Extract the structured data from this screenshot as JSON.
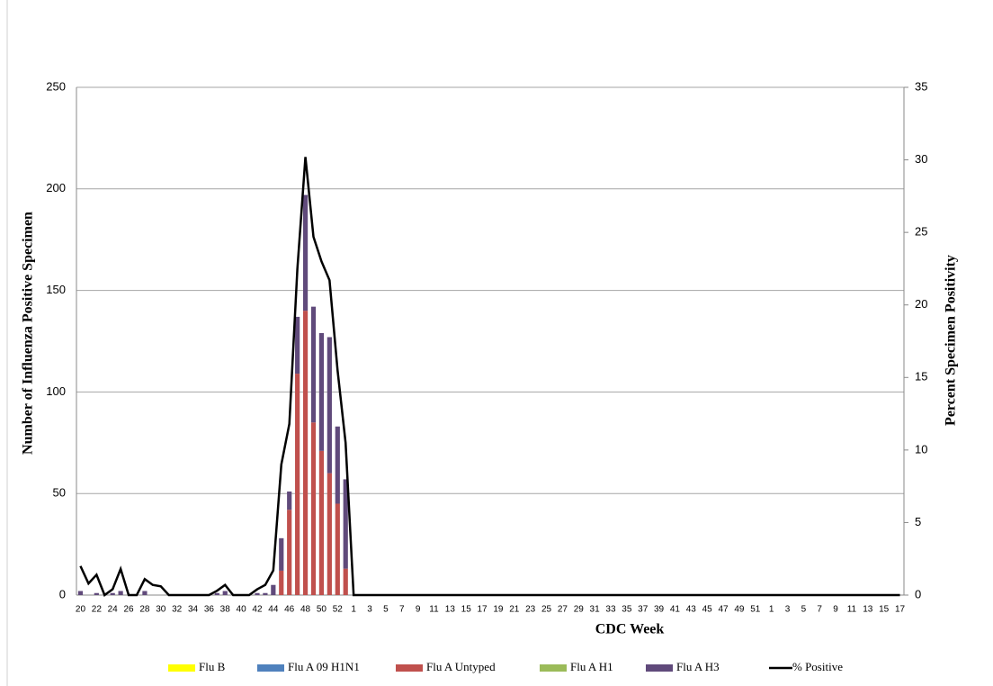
{
  "chart_data": {
    "type": "bar",
    "stacked": true,
    "x_label": "CDC Week",
    "y_label": "Number of Influenza Positive Specimen",
    "y2_label": "Percent Specimen Positivity",
    "grid": true,
    "legend": "bottom",
    "categories": [
      "20",
      null,
      "22",
      null,
      "24",
      null,
      "26",
      null,
      "28",
      null,
      "30",
      null,
      "32",
      null,
      "34",
      null,
      "36",
      null,
      "38",
      null,
      "40",
      null,
      "42",
      null,
      "44",
      null,
      "46",
      null,
      "48",
      null,
      "50",
      null,
      "52",
      null,
      "1",
      null,
      "3",
      null,
      "5",
      null,
      "7",
      null,
      "9",
      null,
      "11",
      null,
      "13",
      null,
      "15",
      null,
      "17",
      null,
      "19",
      null,
      "21",
      null,
      "23",
      null,
      "25",
      null,
      "27",
      null,
      "29",
      null,
      "31",
      null,
      "33",
      null,
      "35",
      null,
      "37",
      null,
      "39",
      null,
      "41",
      null,
      "43",
      null,
      "45",
      null,
      "47",
      null,
      "49",
      null,
      "51",
      null,
      "1",
      null,
      "3",
      null,
      "5",
      null,
      "7",
      null,
      "9",
      null,
      "11",
      null,
      "13",
      null,
      "15",
      null,
      "17"
    ],
    "ylim": [
      0,
      250
    ],
    "yticks": [
      0,
      50,
      100,
      150,
      200,
      250
    ],
    "y2lim": [
      0,
      35
    ],
    "y2ticks": [
      0,
      5,
      10,
      15,
      20,
      25,
      30,
      35
    ],
    "series": [
      {
        "name": "Flu B",
        "color": "#ffff00",
        "type": "bar",
        "values": [
          0,
          0,
          0,
          0,
          0,
          0,
          0,
          0,
          0,
          0,
          0,
          0,
          0,
          0,
          0,
          0,
          0,
          0,
          0,
          0,
          0,
          0,
          0,
          0,
          0,
          0,
          0,
          0,
          0,
          0,
          0,
          0,
          0,
          0,
          0,
          0,
          0,
          0,
          0,
          0,
          0,
          0,
          0,
          0,
          0,
          0,
          0,
          0,
          0,
          0,
          0,
          0,
          0,
          0,
          0,
          0,
          0,
          0,
          0,
          0,
          0,
          0,
          0,
          0,
          0,
          0,
          0,
          0,
          0,
          0,
          0,
          0,
          0,
          0,
          0,
          0,
          0,
          0,
          0,
          0,
          0,
          0,
          0,
          0,
          0,
          0,
          0,
          0,
          0,
          0,
          0,
          0,
          0,
          0,
          0,
          0,
          0,
          0,
          0,
          0,
          0,
          0,
          0
        ]
      },
      {
        "name": "Flu A 09 H1N1",
        "color": "#4f81bd",
        "type": "bar",
        "values": [
          0,
          0,
          0,
          0,
          0,
          0,
          0,
          0,
          0,
          0,
          0,
          0,
          0,
          0,
          0,
          0,
          0,
          0,
          0,
          0,
          0,
          0,
          0,
          0,
          0,
          0,
          0,
          0,
          0,
          0,
          0,
          0,
          0,
          0,
          0,
          0,
          0,
          0,
          0,
          0,
          0,
          0,
          0,
          0,
          0,
          0,
          0,
          0,
          0,
          0,
          0,
          0,
          0,
          0,
          0,
          0,
          0,
          0,
          0,
          0,
          0,
          0,
          0,
          0,
          0,
          0,
          0,
          0,
          0,
          0,
          0,
          0,
          0,
          0,
          0,
          0,
          0,
          0,
          0,
          0,
          0,
          0,
          0,
          0,
          0,
          0,
          0,
          0,
          0,
          0,
          0,
          0,
          0,
          0,
          0,
          0,
          0,
          0,
          0,
          0,
          0,
          0,
          0
        ]
      },
      {
        "name": "Flu A Untyped",
        "color": "#c0504d",
        "type": "bar",
        "values": [
          0,
          0,
          0,
          0,
          0,
          0,
          0,
          0,
          0,
          0,
          0,
          0,
          0,
          0,
          0,
          0,
          0,
          0,
          0,
          0,
          0,
          0,
          0,
          0,
          0,
          12,
          42,
          109,
          140,
          85,
          71,
          60,
          45,
          13,
          0,
          0,
          0,
          0,
          0,
          0,
          0,
          0,
          0,
          0,
          0,
          0,
          0,
          0,
          0,
          0,
          0,
          0,
          0,
          0,
          0,
          0,
          0,
          0,
          0,
          0,
          0,
          0,
          0,
          0,
          0,
          0,
          0,
          0,
          0,
          0,
          0,
          0,
          0,
          0,
          0,
          0,
          0,
          0,
          0,
          0,
          0,
          0,
          0,
          0,
          0,
          0,
          0,
          0,
          0,
          0,
          0,
          0,
          0,
          0,
          0,
          0,
          0,
          0,
          0,
          0,
          0,
          0,
          0
        ]
      },
      {
        "name": "Flu A H1",
        "color": "#9bbb59",
        "type": "bar",
        "values": [
          0,
          0,
          0,
          0,
          0,
          0,
          0,
          0,
          0,
          0,
          0,
          0,
          0,
          0,
          0,
          0,
          0,
          0,
          0,
          0,
          0,
          0,
          0,
          0,
          0,
          0,
          0,
          0,
          0,
          0,
          0,
          0,
          0,
          0,
          0,
          0,
          0,
          0,
          0,
          0,
          0,
          0,
          0,
          0,
          0,
          0,
          0,
          0,
          0,
          0,
          0,
          0,
          0,
          0,
          0,
          0,
          0,
          0,
          0,
          0,
          0,
          0,
          0,
          0,
          0,
          0,
          0,
          0,
          0,
          0,
          0,
          0,
          0,
          0,
          0,
          0,
          0,
          0,
          0,
          0,
          0,
          0,
          0,
          0,
          0,
          0,
          0,
          0,
          0,
          0,
          0,
          0,
          0,
          0,
          0,
          0,
          0,
          0,
          0,
          0,
          0,
          0,
          0
        ]
      },
      {
        "name": "Flu A H3",
        "color": "#604a7b",
        "type": "bar",
        "values": [
          2,
          0,
          1,
          0,
          1,
          2,
          0,
          0,
          2,
          0,
          0,
          0,
          0,
          0,
          0,
          0,
          0,
          1,
          2,
          0,
          0,
          0,
          1,
          1,
          5,
          16,
          9,
          28,
          57,
          57,
          58,
          67,
          38,
          44,
          0,
          0,
          0,
          0,
          0,
          0,
          0,
          0,
          0,
          0,
          0,
          0,
          0,
          0,
          0,
          0,
          0,
          0,
          0,
          0,
          0,
          0,
          0,
          0,
          0,
          0,
          0,
          0,
          0,
          0,
          0,
          0,
          0,
          0,
          0,
          0,
          0,
          0,
          0,
          0,
          0,
          0,
          0,
          0,
          0,
          0,
          0,
          0,
          0,
          0,
          0,
          0,
          0,
          0,
          0,
          0,
          0,
          0,
          0,
          0,
          0,
          0,
          0,
          0,
          0,
          0,
          0,
          0,
          0
        ]
      },
      {
        "name": "% Positive",
        "color": "#000000",
        "type": "line",
        "axis": "y2",
        "values": [
          2.0,
          0.8,
          1.4,
          0,
          0.4,
          1.8,
          0,
          0,
          1.1,
          0.7,
          0.6,
          0,
          0,
          0,
          0,
          0,
          0,
          0.3,
          0.7,
          0,
          0,
          0,
          0.4,
          0.7,
          1.7,
          9.0,
          11.8,
          22.5,
          30.2,
          24.7,
          23.0,
          21.7,
          15.5,
          10.5,
          0,
          0,
          0,
          0,
          0,
          0,
          0,
          0,
          0,
          0,
          0,
          0,
          0,
          0,
          0,
          0,
          0,
          0,
          0,
          0,
          0,
          0,
          0,
          0,
          0,
          0,
          0,
          0,
          0,
          0,
          0,
          0,
          0,
          0,
          0,
          0,
          0,
          0,
          0,
          0,
          0,
          0,
          0,
          0,
          0,
          0,
          0,
          0,
          0,
          0,
          0,
          0,
          0,
          0,
          0,
          0,
          0,
          0,
          0,
          0,
          0,
          0,
          0,
          0,
          0,
          0,
          0,
          0,
          0
        ]
      }
    ]
  }
}
